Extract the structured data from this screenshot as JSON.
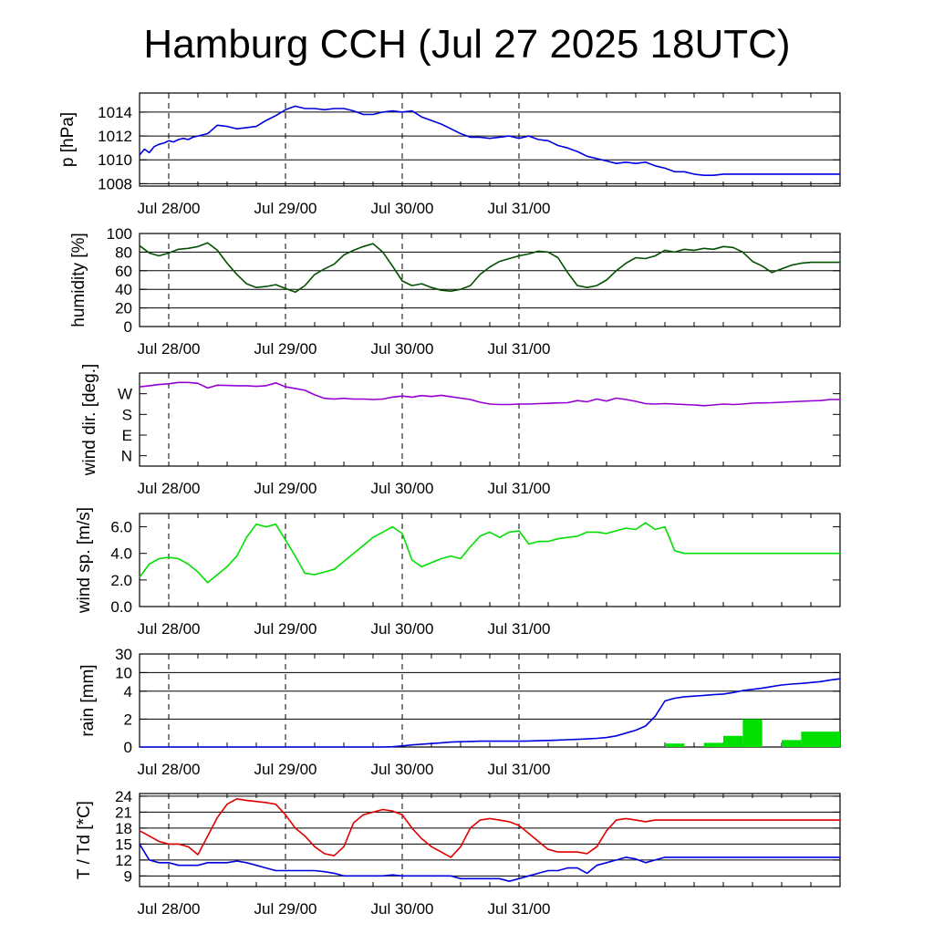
{
  "title": "Hamburg CCH (Jul 27 2025 18UTC)",
  "x_day_labels": [
    "Jul 28/00",
    "Jul 29/00",
    "Jul 30/00",
    "Jul 31/00"
  ],
  "chart_data": [
    {
      "type": "line",
      "ylabel": "p [hPa]",
      "yticks": [
        "1008",
        "1010",
        "1012",
        "1014"
      ],
      "ylim": [
        1007.8,
        1015.6
      ],
      "grid": true,
      "series": [
        {
          "color": "#0000e0",
          "x_hours": [
            0,
            1,
            2,
            3,
            4,
            5,
            6,
            7,
            8,
            9,
            10,
            11,
            12,
            14,
            16,
            18,
            20,
            22,
            24,
            26,
            28,
            30,
            32,
            34,
            36,
            38,
            40,
            42,
            44,
            46,
            48,
            50,
            52,
            54,
            56,
            58,
            60,
            62,
            64,
            66,
            68,
            70,
            72,
            74,
            76,
            78,
            80,
            82,
            84,
            86,
            88,
            90,
            92,
            94,
            96,
            98,
            100,
            102,
            104,
            106,
            108,
            110,
            112,
            114,
            116,
            118,
            120,
            122,
            124,
            126,
            128,
            130,
            132,
            134,
            136,
            138,
            140,
            142,
            144
          ],
          "values": [
            1010.4,
            1010.9,
            1010.6,
            1011.1,
            1011.3,
            1011.4,
            1011.6,
            1011.5,
            1011.7,
            1011.8,
            1011.7,
            1011.9,
            1012.0,
            1012.2,
            1012.9,
            1012.8,
            1012.6,
            1012.7,
            1012.8,
            1013.3,
            1013.7,
            1014.2,
            1014.5,
            1014.3,
            1014.3,
            1014.2,
            1014.3,
            1014.3,
            1014.1,
            1013.8,
            1013.8,
            1014.0,
            1014.1,
            1014.0,
            1014.1,
            1013.6,
            1013.3,
            1013.0,
            1012.6,
            1012.2,
            1011.9,
            1011.9,
            1011.8,
            1011.9,
            1012.0,
            1011.8,
            1012.0,
            1011.7,
            1011.6,
            1011.2,
            1011.0,
            1010.7,
            1010.3,
            1010.1,
            1009.9,
            1009.7,
            1009.8,
            1009.7,
            1009.8,
            1009.5,
            1009.3,
            1009.0,
            1009.0,
            1008.8,
            1008.7,
            1008.7,
            1008.8,
            1008.8,
            1008.8,
            1008.8,
            1008.8,
            1008.8,
            1008.8,
            1008.8,
            1008.8,
            1008.8,
            1008.8,
            1008.8,
            1008.8
          ]
        }
      ]
    },
    {
      "type": "line",
      "ylabel": "humidity [%]",
      "yticks": [
        "0",
        "20",
        "40",
        "60",
        "80",
        "100"
      ],
      "ylim": [
        0,
        100
      ],
      "grid": true,
      "series": [
        {
          "color": "#005000",
          "x_hours": [
            0,
            2,
            4,
            6,
            8,
            10,
            12,
            14,
            16,
            18,
            20,
            22,
            24,
            26,
            28,
            30,
            32,
            34,
            36,
            38,
            40,
            42,
            44,
            46,
            48,
            50,
            52,
            54,
            56,
            58,
            60,
            62,
            64,
            66,
            68,
            70,
            72,
            74,
            76,
            78,
            80,
            82,
            84,
            86,
            88,
            90,
            92,
            94,
            96,
            98,
            100,
            102,
            104,
            106,
            108,
            110,
            112,
            114,
            116,
            118,
            120,
            122,
            124,
            126,
            128,
            130,
            132,
            134,
            136,
            138,
            140,
            142,
            144
          ],
          "values": [
            87,
            79,
            76,
            79,
            83,
            84,
            86,
            90,
            82,
            68,
            56,
            46,
            42,
            43,
            45,
            41,
            37,
            44,
            56,
            62,
            67,
            77,
            82,
            86,
            89,
            80,
            65,
            49,
            44,
            46,
            42,
            39,
            38,
            40,
            44,
            56,
            64,
            70,
            73,
            76,
            78,
            81,
            80,
            74,
            58,
            44,
            42,
            44,
            50,
            60,
            68,
            74,
            73,
            76,
            82,
            80,
            83,
            82,
            84,
            83,
            86,
            85,
            80,
            70,
            65,
            58,
            62,
            66,
            68,
            69,
            69,
            69,
            69
          ]
        }
      ]
    },
    {
      "type": "line",
      "ylabel": "wind dir. [deg.]",
      "yticks": [
        "N",
        "E",
        "S",
        "W"
      ],
      "ylim": [
        0,
        405
      ],
      "grid": false,
      "series": [
        {
          "color": "#9400d3",
          "x_hours": [
            0,
            2,
            4,
            6,
            8,
            10,
            12,
            14,
            16,
            18,
            20,
            22,
            24,
            26,
            28,
            30,
            32,
            34,
            36,
            38,
            40,
            42,
            44,
            46,
            48,
            50,
            52,
            54,
            56,
            58,
            60,
            62,
            64,
            66,
            68,
            70,
            72,
            74,
            76,
            78,
            80,
            82,
            84,
            86,
            88,
            90,
            92,
            94,
            96,
            98,
            100,
            102,
            104,
            106,
            108,
            110,
            112,
            114,
            116,
            118,
            120,
            122,
            124,
            126,
            128,
            130,
            132,
            134,
            136,
            138,
            140,
            142,
            144
          ],
          "values": [
            345,
            350,
            355,
            358,
            364,
            364,
            360,
            340,
            352,
            351,
            350,
            350,
            347,
            350,
            362,
            345,
            338,
            330,
            310,
            295,
            292,
            295,
            292,
            292,
            290,
            292,
            300,
            305,
            300,
            307,
            303,
            308,
            302,
            296,
            290,
            278,
            270,
            268,
            268,
            270,
            270,
            272,
            273,
            275,
            276,
            285,
            280,
            292,
            283,
            296,
            290,
            282,
            272,
            270,
            272,
            270,
            268,
            266,
            263,
            266,
            270,
            268,
            270,
            274,
            275,
            276,
            278,
            280,
            282,
            284,
            285,
            290,
            290
          ]
        }
      ]
    },
    {
      "type": "line",
      "ylabel": "wind sp. [m/s]",
      "yticks": [
        "0.0",
        "2.0",
        "4.0",
        "6.0"
      ],
      "ylim": [
        0,
        7.0
      ],
      "grid": false,
      "series": [
        {
          "color": "#00e000",
          "x_hours": [
            0,
            2,
            4,
            6,
            8,
            10,
            12,
            14,
            16,
            18,
            20,
            22,
            24,
            26,
            28,
            30,
            32,
            34,
            36,
            38,
            40,
            42,
            44,
            46,
            48,
            50,
            52,
            54,
            56,
            58,
            60,
            62,
            64,
            66,
            68,
            70,
            72,
            74,
            76,
            78,
            80,
            82,
            84,
            86,
            88,
            90,
            92,
            94,
            96,
            98,
            100,
            102,
            104,
            106,
            108,
            110,
            112,
            114,
            116,
            118,
            120,
            122,
            124,
            126,
            128,
            130,
            132,
            134,
            136,
            138,
            140,
            142,
            144
          ],
          "values": [
            2.2,
            3.2,
            3.6,
            3.7,
            3.6,
            3.2,
            2.6,
            1.8,
            2.4,
            3.0,
            3.8,
            5.2,
            6.2,
            6.0,
            6.2,
            5.0,
            3.8,
            2.5,
            2.4,
            2.6,
            2.8,
            3.4,
            4.0,
            4.6,
            5.2,
            5.6,
            6.0,
            5.5,
            3.5,
            3.0,
            3.3,
            3.6,
            3.8,
            3.6,
            4.5,
            5.3,
            5.6,
            5.2,
            5.6,
            5.7,
            4.7,
            4.9,
            4.9,
            5.1,
            5.2,
            5.3,
            5.6,
            5.6,
            5.5,
            5.7,
            5.9,
            5.8,
            6.3,
            5.8,
            6.0,
            4.2,
            4.0,
            4.0,
            4.0,
            4.0,
            4.0,
            4.0,
            4.0,
            4.0,
            4.0,
            4.0,
            4.0,
            4.0,
            4.0,
            4.0,
            4.0,
            4.0,
            4.0
          ]
        }
      ]
    },
    {
      "type": "bar",
      "ylabel": "rain [mm]",
      "yticks": [
        "0",
        "2",
        "4",
        "10",
        "30"
      ],
      "grid": true,
      "bar_color": "#00e000",
      "bars_hour_mm": [
        {
          "start": 108,
          "end": 112,
          "mm": 0.25
        },
        {
          "start": 116,
          "end": 120,
          "mm": 0.3
        },
        {
          "start": 120,
          "end": 124,
          "mm": 0.8
        },
        {
          "start": 124,
          "end": 128,
          "mm": 2.0
        },
        {
          "start": 132,
          "end": 136,
          "mm": 0.5
        },
        {
          "start": 136,
          "end": 144,
          "mm": 1.1
        }
      ],
      "series": [
        {
          "name": "accumulated",
          "color": "#0000e0",
          "x_hours": [
            0,
            50,
            52,
            54,
            56,
            58,
            60,
            62,
            64,
            66,
            68,
            70,
            72,
            74,
            76,
            78,
            80,
            82,
            84,
            86,
            88,
            90,
            92,
            94,
            96,
            98,
            100,
            102,
            104,
            106,
            108,
            110,
            112,
            114,
            116,
            118,
            120,
            122,
            124,
            126,
            128,
            130,
            132,
            134,
            136,
            138,
            140,
            142,
            144
          ],
          "values": [
            0,
            0,
            0.02,
            0.08,
            0.15,
            0.2,
            0.25,
            0.3,
            0.35,
            0.38,
            0.4,
            0.42,
            0.42,
            0.42,
            0.42,
            0.42,
            0.43,
            0.45,
            0.47,
            0.5,
            0.52,
            0.55,
            0.58,
            0.62,
            0.68,
            0.8,
            1.0,
            1.2,
            1.5,
            2.2,
            3.3,
            3.5,
            3.6,
            3.65,
            3.7,
            3.75,
            3.8,
            3.9,
            4.2,
            4.6,
            5.0,
            5.5,
            6.0,
            6.3,
            6.5,
            6.8,
            7.1,
            7.6,
            8.0
          ]
        }
      ]
    },
    {
      "type": "line",
      "ylabel": "T / Td [*C]",
      "yticks": [
        "9",
        "12",
        "15",
        "18",
        "21",
        "24"
      ],
      "ylim": [
        7,
        24.5
      ],
      "grid": true,
      "series": [
        {
          "color": "#e00000",
          "x_hours": [
            0,
            2,
            4,
            6,
            8,
            10,
            12,
            14,
            16,
            18,
            20,
            22,
            24,
            26,
            28,
            30,
            32,
            34,
            36,
            38,
            40,
            42,
            44,
            46,
            48,
            50,
            52,
            54,
            56,
            58,
            60,
            62,
            64,
            66,
            68,
            70,
            72,
            74,
            76,
            78,
            80,
            82,
            84,
            86,
            88,
            90,
            92,
            94,
            96,
            98,
            100,
            102,
            104,
            106,
            108,
            110,
            112,
            114,
            116,
            118,
            120,
            122,
            124,
            126,
            128,
            130,
            132,
            134,
            136,
            138,
            140,
            142,
            144
          ],
          "values": [
            17.5,
            16.5,
            15.5,
            15.0,
            15.0,
            14.5,
            13.0,
            16.5,
            20.0,
            22.5,
            23.5,
            23.2,
            23.0,
            22.8,
            22.5,
            20.5,
            18.0,
            16.5,
            14.5,
            13.2,
            12.8,
            14.5,
            19.0,
            20.5,
            21.0,
            21.5,
            21.2,
            20.5,
            18.0,
            16.0,
            14.5,
            13.5,
            12.5,
            14.5,
            18.0,
            19.5,
            19.8,
            19.5,
            19.2,
            18.5,
            17.0,
            15.5,
            14.0,
            13.5,
            13.5,
            13.5,
            13.2,
            14.5,
            17.5,
            19.5,
            19.8,
            19.5,
            19.2,
            19.5,
            19.5,
            19.5,
            19.5,
            19.5,
            19.5,
            19.5,
            19.5,
            19.5,
            19.5,
            19.5,
            19.5,
            19.5,
            19.5,
            19.5,
            19.5,
            19.5,
            19.5,
            19.5,
            19.5
          ]
        },
        {
          "color": "#0000e0",
          "x_hours": [
            0,
            2,
            4,
            6,
            8,
            10,
            12,
            14,
            16,
            18,
            20,
            22,
            24,
            26,
            28,
            30,
            32,
            34,
            36,
            38,
            40,
            42,
            44,
            46,
            48,
            50,
            52,
            54,
            56,
            58,
            60,
            62,
            64,
            66,
            68,
            70,
            72,
            74,
            76,
            78,
            80,
            82,
            84,
            86,
            88,
            90,
            92,
            94,
            96,
            98,
            100,
            102,
            104,
            106,
            108,
            110,
            112,
            114,
            116,
            118,
            120,
            122,
            124,
            126,
            128,
            130,
            132,
            134,
            136,
            138,
            140,
            142,
            144
          ],
          "values": [
            15.0,
            12.0,
            11.5,
            11.5,
            11.0,
            11.0,
            11.0,
            11.5,
            11.5,
            11.5,
            11.8,
            11.5,
            11.0,
            10.5,
            10.0,
            10.0,
            10.0,
            10.0,
            10.0,
            9.8,
            9.5,
            9.0,
            9.0,
            9.0,
            9.0,
            9.0,
            9.2,
            9.0,
            9.0,
            9.0,
            9.0,
            9.0,
            9.0,
            8.5,
            8.5,
            8.5,
            8.5,
            8.5,
            8.0,
            8.5,
            9.0,
            9.5,
            10.0,
            10.0,
            10.5,
            10.5,
            9.5,
            11.0,
            11.5,
            12.0,
            12.5,
            12.2,
            11.5,
            12.0,
            12.5,
            12.5,
            12.5,
            12.5,
            12.5,
            12.5,
            12.5,
            12.5,
            12.5,
            12.5,
            12.5,
            12.5,
            12.5,
            12.5,
            12.5,
            12.5,
            12.5,
            12.5,
            12.5
          ]
        }
      ]
    }
  ]
}
